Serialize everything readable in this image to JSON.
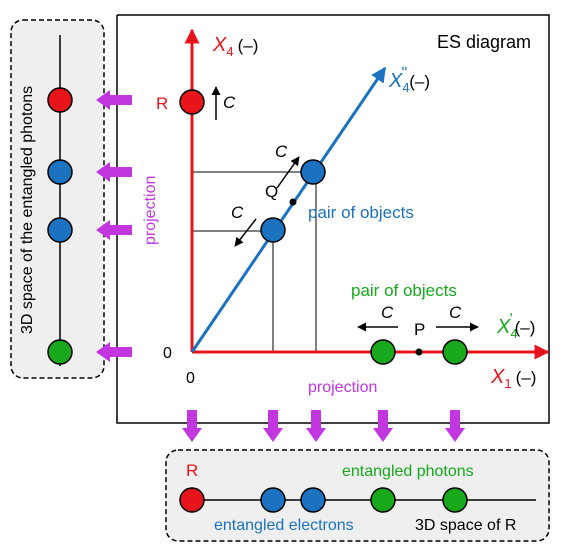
{
  "main": {
    "title": "ES diagram",
    "axis_x1": {
      "name": "X",
      "sub": "1",
      "unit": "(–)"
    },
    "axis_x4": {
      "name": "X",
      "sub": "4",
      "unit": "(–)"
    },
    "axis_x4pp": {
      "name": "X",
      "sub": "4",
      "prime": "\"",
      "unit": "(–)"
    },
    "axis_x4p": {
      "name": "X",
      "sub": "4",
      "prime": "'",
      "unit": "(–)"
    },
    "origin_x": "0",
    "origin_y": "0",
    "label_R": "R",
    "label_C": "C",
    "label_Q": "Q",
    "label_P": "P",
    "pair_blue": "pair of objects",
    "pair_green": "pair of objects",
    "projection_v": "projection",
    "projection_h": "projection"
  },
  "left_panel": {
    "label": "3D space of the entangled photons"
  },
  "bottom_panel": {
    "R": "R",
    "entangled_photons": "entangled photons",
    "entangled_electrons": "entangled electrons",
    "space_R": "3D space of R"
  },
  "colors": {
    "red": "#e8141b",
    "blue": "#1a72c1",
    "green": "#17a81c",
    "magenta": "#c236e0",
    "panel_bg": "#efefef"
  }
}
